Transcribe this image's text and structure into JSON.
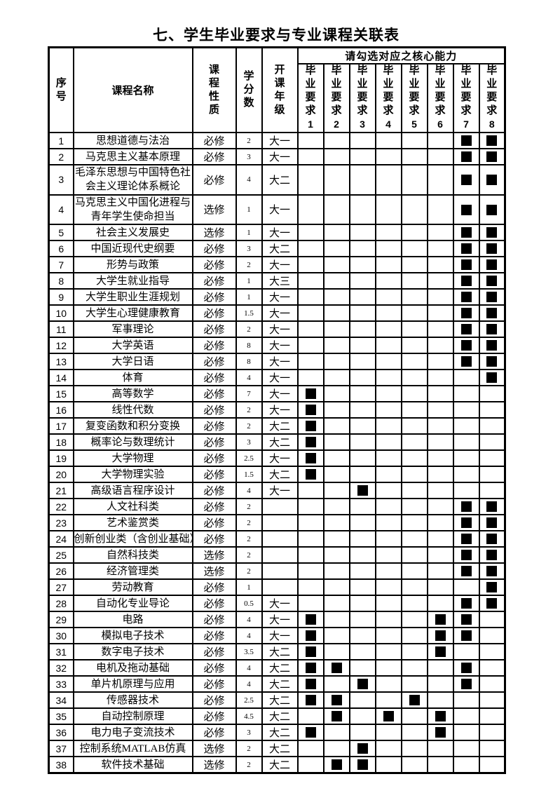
{
  "title": "七、学生毕业要求与专业课程关联表",
  "table": {
    "headers": {
      "index": "序号",
      "course": "课程名称",
      "nature": "课程性质",
      "credits": "学分数",
      "grade": "开课年级",
      "core_ability": "请勾选对应之核心能力",
      "requirements": [
        {
          "label": "毕业要求",
          "num": "1"
        },
        {
          "label": "毕业要求",
          "num": "2"
        },
        {
          "label": "毕业要求",
          "num": "3"
        },
        {
          "label": "毕业要求",
          "num": "4"
        },
        {
          "label": "毕业要求",
          "num": "5"
        },
        {
          "label": "毕业要求",
          "num": "6"
        },
        {
          "label": "毕业要求",
          "num": "7"
        },
        {
          "label": "毕业要求",
          "num": "8"
        }
      ]
    },
    "rows": [
      {
        "no": "1",
        "course": "思想道德与法治",
        "nature": "必修",
        "credits": "2",
        "grade": "大一",
        "checks": [
          7,
          8
        ]
      },
      {
        "no": "2",
        "course": "马克思主义基本原理",
        "nature": "必修",
        "credits": "3",
        "grade": "大一",
        "checks": [
          7,
          8
        ]
      },
      {
        "no": "3",
        "course": "毛泽东思想与中国特色社会主义理论体系概论",
        "nature": "必修",
        "credits": "4",
        "grade": "大二",
        "checks": [
          7,
          8
        ]
      },
      {
        "no": "4",
        "course": "马克思主义中国化进程与青年学生使命担当",
        "nature": "选修",
        "credits": "1",
        "grade": "大一",
        "checks": [
          7,
          8
        ]
      },
      {
        "no": "5",
        "course": "社会主义发展史",
        "nature": "选修",
        "credits": "1",
        "grade": "大一",
        "checks": [
          7,
          8
        ]
      },
      {
        "no": "6",
        "course": "中国近现代史纲要",
        "nature": "必修",
        "credits": "3",
        "grade": "大二",
        "checks": [
          7,
          8
        ]
      },
      {
        "no": "7",
        "course": "形势与政策",
        "nature": "必修",
        "credits": "2",
        "grade": "大一",
        "checks": [
          7,
          8
        ]
      },
      {
        "no": "8",
        "course": "大学生就业指导",
        "nature": "必修",
        "credits": "1",
        "grade": "大三",
        "checks": [
          7,
          8
        ]
      },
      {
        "no": "9",
        "course": "大学生职业生涯规划",
        "nature": "必修",
        "credits": "1",
        "grade": "大一",
        "checks": [
          7,
          8
        ]
      },
      {
        "no": "10",
        "course": "大学生心理健康教育",
        "nature": "必修",
        "credits": "1.5",
        "grade": "大一",
        "checks": [
          7,
          8
        ]
      },
      {
        "no": "11",
        "course": "军事理论",
        "nature": "必修",
        "credits": "2",
        "grade": "大一",
        "checks": [
          7,
          8
        ]
      },
      {
        "no": "12",
        "course": "大学英语",
        "nature": "必修",
        "credits": "8",
        "grade": "大一",
        "checks": [
          7,
          8
        ]
      },
      {
        "no": "13",
        "course": "大学日语",
        "nature": "必修",
        "credits": "8",
        "grade": "大一",
        "checks": [
          7,
          8
        ]
      },
      {
        "no": "14",
        "course": "体育",
        "nature": "必修",
        "credits": "4",
        "grade": "大一",
        "checks": [
          8
        ]
      },
      {
        "no": "15",
        "course": "高等数学",
        "nature": "必修",
        "credits": "7",
        "grade": "大一",
        "checks": [
          1
        ]
      },
      {
        "no": "16",
        "course": "线性代数",
        "nature": "必修",
        "credits": "2",
        "grade": "大一",
        "checks": [
          1
        ]
      },
      {
        "no": "17",
        "course": "复变函数和积分变换",
        "nature": "必修",
        "credits": "2",
        "grade": "大二",
        "checks": [
          1
        ]
      },
      {
        "no": "18",
        "course": "概率论与数理统计",
        "nature": "必修",
        "credits": "3",
        "grade": "大二",
        "checks": [
          1
        ]
      },
      {
        "no": "19",
        "course": "大学物理",
        "nature": "必修",
        "credits": "2.5",
        "grade": "大一",
        "checks": [
          1
        ]
      },
      {
        "no": "20",
        "course": "大学物理实验",
        "nature": "必修",
        "credits": "1.5",
        "grade": "大二",
        "checks": [
          1
        ]
      },
      {
        "no": "21",
        "course": "高级语言程序设计",
        "nature": "必修",
        "credits": "4",
        "grade": "大一",
        "checks": [
          3
        ]
      },
      {
        "no": "22",
        "course": "人文社科类",
        "nature": "必修",
        "credits": "2",
        "grade": "",
        "checks": [
          7,
          8
        ]
      },
      {
        "no": "23",
        "course": "艺术鉴赏类",
        "nature": "必修",
        "credits": "2",
        "grade": "",
        "checks": [
          7,
          8
        ]
      },
      {
        "no": "24",
        "course": "创新创业类（含创业基础）",
        "nature": "必修",
        "credits": "2",
        "grade": "",
        "checks": [
          7,
          8
        ]
      },
      {
        "no": "25",
        "course": "自然科技类",
        "nature": "选修",
        "credits": "2",
        "grade": "",
        "checks": [
          7,
          8
        ]
      },
      {
        "no": "26",
        "course": "经济管理类",
        "nature": "选修",
        "credits": "2",
        "grade": "",
        "checks": [
          7,
          8
        ]
      },
      {
        "no": "27",
        "course": "劳动教育",
        "nature": "必修",
        "credits": "1",
        "grade": "",
        "checks": [
          8
        ]
      },
      {
        "no": "28",
        "course": "自动化专业导论",
        "nature": "必修",
        "credits": "0.5",
        "grade": "大一",
        "checks": [
          7,
          8
        ]
      },
      {
        "no": "29",
        "course": "电路",
        "nature": "必修",
        "credits": "4",
        "grade": "大一",
        "checks": [
          1,
          6,
          7
        ]
      },
      {
        "no": "30",
        "course": "模拟电子技术",
        "nature": "必修",
        "credits": "4",
        "grade": "大一",
        "checks": [
          1,
          6,
          7
        ]
      },
      {
        "no": "31",
        "course": "数字电子技术",
        "nature": "必修",
        "credits": "3.5",
        "grade": "大二",
        "checks": [
          1,
          6
        ]
      },
      {
        "no": "32",
        "course": "电机及拖动基础",
        "nature": "必修",
        "credits": "4",
        "grade": "大二",
        "checks": [
          1,
          2,
          7
        ]
      },
      {
        "no": "33",
        "course": "单片机原理与应用",
        "nature": "必修",
        "credits": "4",
        "grade": "大二",
        "checks": [
          1,
          3,
          7
        ]
      },
      {
        "no": "34",
        "course": "传感器技术",
        "nature": "必修",
        "credits": "2.5",
        "grade": "大二",
        "checks": [
          1,
          2,
          5
        ]
      },
      {
        "no": "35",
        "course": "自动控制原理",
        "nature": "必修",
        "credits": "4.5",
        "grade": "大二",
        "checks": [
          2,
          4,
          6
        ]
      },
      {
        "no": "36",
        "course": "电力电子变流技术",
        "nature": "必修",
        "credits": "3",
        "grade": "大二",
        "checks": [
          1,
          6
        ]
      },
      {
        "no": "37",
        "course": "控制系统MATLAB仿真",
        "nature": "选修",
        "credits": "2",
        "grade": "大二",
        "checks": [
          3
        ]
      },
      {
        "no": "38",
        "course": "软件技术基础",
        "nature": "选修",
        "credits": "2",
        "grade": "大二",
        "checks": [
          2,
          3
        ]
      }
    ]
  }
}
